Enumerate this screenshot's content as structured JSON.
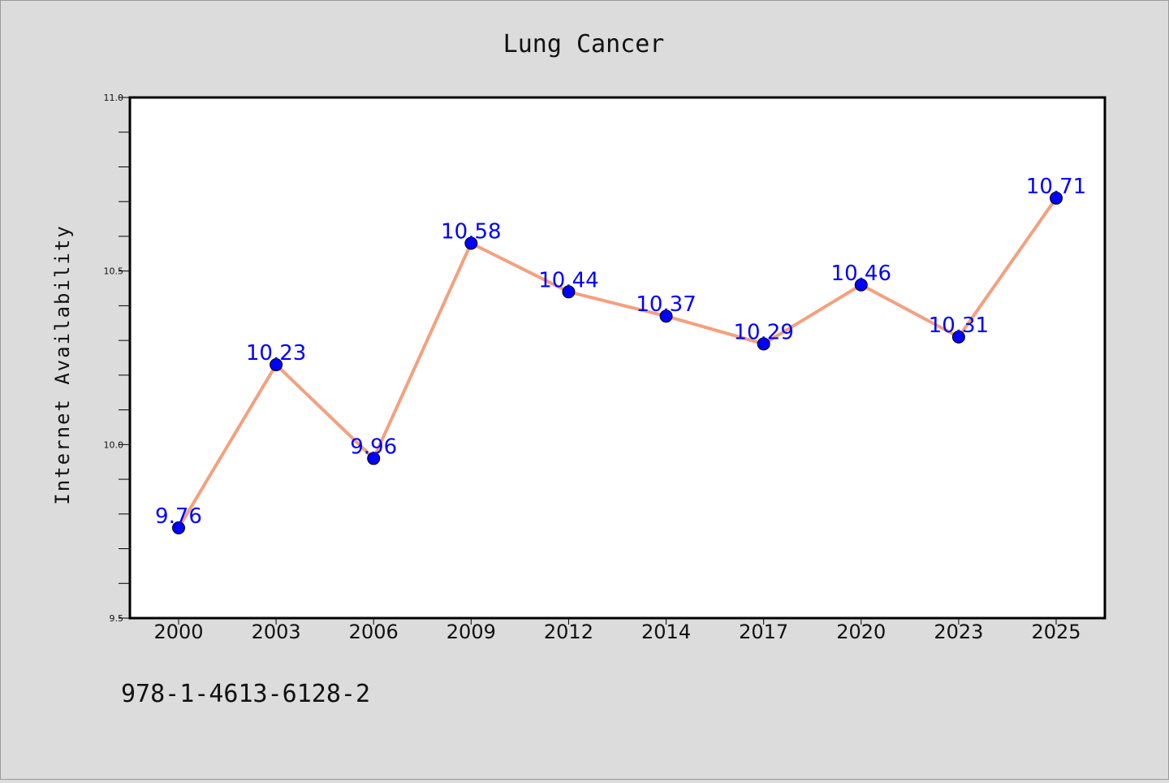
{
  "chart_data": {
    "type": "line",
    "title": "Lung Cancer",
    "xlabel": "",
    "ylabel": "Internet Availability",
    "categories": [
      "2000",
      "2003",
      "2006",
      "2009",
      "2012",
      "2014",
      "2017",
      "2020",
      "2023",
      "2025"
    ],
    "series": [
      {
        "values": [
          9.76,
          10.23,
          9.96,
          10.58,
          10.44,
          10.37,
          10.29,
          10.46,
          10.31,
          10.71
        ],
        "labels": [
          "9.76",
          "10.23",
          "9.96",
          "10.58",
          "10.44",
          "10.37",
          "10.29",
          "10.46",
          "10.31",
          "10.71"
        ],
        "line_color": "#f4a07e",
        "marker_color": "#0000ff"
      }
    ],
    "ylim": [
      9.5,
      11.0
    ],
    "yticks": [
      "9.5",
      "10.0",
      "10.5",
      "11.0"
    ],
    "grid": false,
    "data_label_color": "#0000ff"
  },
  "footnote": "978-1-4613-6128-2"
}
